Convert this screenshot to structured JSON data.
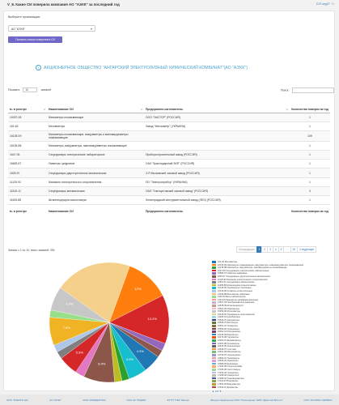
{
  "header": {
    "title": "V_8. Какие СИ поверила компания АО \"АЭХК\" за последний год",
    "user_label": "СУЗ seg07"
  },
  "filter": {
    "org_label": "Выберите организацию:",
    "org_value": "АО \"АЭХК\"",
    "show_button": "Показать список поверенных СИ"
  },
  "company_banner": "АКЦИОНЕРНОЕ ОБЩЕСТВО \"АНГАРСКИЙ ЭЛЕКТРОЛИЗНЫЙ ХИМИЧЕСКИЙ КОМБИНАТ\"(АО \"АЭХК\")",
  "table_controls": {
    "show_label": "Показать",
    "page_len": "10",
    "records_label": "записей",
    "search_label": "Поиск:"
  },
  "table": {
    "columns": [
      "№ в реестре",
      "Наименование СИ",
      "Предприятие-изготовитель",
      "Количество поверок за год"
    ],
    "rows": [
      [
        "10037-08",
        "Манометры показывающие",
        "ООО \"ЭАСТОР\" (РОССИЯ)",
        "1"
      ],
      [
        "161-62",
        "Мегомметры",
        "Завод \"Мегомметр\" (УКРАИНА)",
        "1"
      ],
      [
        "16135-09",
        "Манометры показывающие, вакуумметры и мановакуумметры показывающие",
        "",
        "109"
      ],
      [
        "16135-88",
        "Манометры, вакуумметры, мановакуумметры показывающие",
        "",
        "1"
      ],
      [
        "1647-06",
        "Секундомеры электрические лабораторные",
        "Приборостроительный завод (РОССИЯ)",
        "1"
      ],
      [
        "16683-67",
        "Омметры цифровые",
        "ОАО \"Краснодарский ЗИП\" (РОССИЯ)",
        "1"
      ],
      [
        "1825-97",
        "Секундомеры двухстрелочные механические",
        "З-Я Московский часовой завод (РОССИЯ)",
        "1"
      ],
      [
        "11125-92",
        "Магазины электрического сопротивления",
        "ПО \"Электроприбор\" (УКРАИНА)",
        "1"
      ],
      [
        "11519-11",
        "Секундомеры механические",
        "ОАО \"Златоустовский часовой завод\" (РОССИЯ)",
        "3"
      ],
      [
        "11605-88",
        "Штангенциркули-высотомеры",
        "Ленинградский инструментальный завод (ЛЕО) (РОССИЯ)",
        "1"
      ]
    ]
  },
  "table_info": "Записи с 1 по 10, всего записей: 394",
  "pagination": {
    "prev": "Предыдущая",
    "pages": [
      "1",
      "2",
      "3",
      "4",
      "5",
      "…",
      "30"
    ],
    "next": "Следующая",
    "active": "1"
  },
  "chart_data": {
    "type": "pie",
    "slices": [
      {
        "label": "12%",
        "value": 12,
        "color": "#ff7f0e"
      },
      {
        "label": "13.2%",
        "value": 13.2,
        "color": "#d62728"
      },
      {
        "label": "",
        "value": 2.0,
        "color": "#9467bd"
      },
      {
        "label": "",
        "value": 2.0,
        "color": "#8c564b"
      },
      {
        "label": "4.9%",
        "value": 4.9,
        "color": "#1f77b4"
      },
      {
        "label": "4.9%",
        "value": 4.9,
        "color": "#17becf"
      },
      {
        "label": "",
        "value": 2.0,
        "color": "#2ca02c"
      },
      {
        "label": "",
        "value": 2.0,
        "color": "#bcbd22"
      },
      {
        "label": "8.4%",
        "value": 8.4,
        "color": "#8c564b"
      },
      {
        "label": "",
        "value": 2.5,
        "color": "#e377c2"
      },
      {
        "label": "5.3%",
        "value": 5.3,
        "color": "#d62728"
      },
      {
        "label": "",
        "value": 2.0,
        "color": "#7f7f7f"
      },
      {
        "label": "",
        "value": 2.0,
        "color": "#aec7e8"
      },
      {
        "label": "7.6%",
        "value": 7.6,
        "color": "#f0b323"
      },
      {
        "label": "",
        "value": 2.0,
        "color": "#98df8a"
      },
      {
        "label": "6.4%",
        "value": 6.4,
        "color": "#c7c7c7"
      },
      {
        "label": "",
        "value": 20.8,
        "color": "#f5d08a"
      }
    ]
  },
  "legend": {
    "items": [
      {
        "label": "161-62 Мегомметры",
        "color": "#1f77b4"
      },
      {
        "label": "16135-09 Манометры показывающие, вакуумметры и мановакуумметры показывающие",
        "color": "#ff7f0e"
      },
      {
        "label": "16135-88 Манометры, вакуумметры, мановакуумметры показывающие",
        "color": "#2ca02c"
      },
      {
        "label": "1647-06 Секундомеры электрические лабораторные",
        "color": "#d62728"
      },
      {
        "label": "16683-67 Омметры цифровые",
        "color": "#9467bd"
      },
      {
        "label": "1825-97 Секундомеры двухстрелочные механические",
        "color": "#8c564b"
      },
      {
        "label": "11125-92 Магазины электрического сопротивления",
        "color": "#e377c2"
      },
      {
        "label": "11519-11 Секундомеры механические",
        "color": "#7f7f7f"
      },
      {
        "label": "11605-88 Штангенциркули-высотомеры",
        "color": "#bcbd22"
      },
      {
        "label": "16135-95 Термометры стеклянные",
        "color": "#17becf"
      },
      {
        "label": "12143-96 Аппараты испытательные",
        "color": "#aec7e8"
      },
      {
        "label": "13043-88 Вольтметры цифровые",
        "color": "#ffbb78"
      },
      {
        "label": "1344-93 Весы лабораторные",
        "color": "#98df8a"
      },
      {
        "label": "1344-05 Манометры дифференциальные",
        "color": "#ff9896"
      },
      {
        "label": "13547-94 Преобразователи давления",
        "color": "#c5b0d5"
      },
      {
        "label": "13578-99 Штангенциркули",
        "color": "#c49c94"
      },
      {
        "label": "15001-05 Микрометры",
        "color": "#f7b6d2"
      },
      {
        "label": "15250-96 Мультиметры",
        "color": "#c7c7c7"
      },
      {
        "label": "15345-92 Термометры сопротивления",
        "color": "#dbdb8d"
      },
      {
        "label": "15465-01 Калибраторы",
        "color": "#9edae5"
      },
      {
        "label": "15516-97 Амперметры",
        "color": "#393b79"
      },
      {
        "label": "15545-07 Ваттметры",
        "color": "#637939"
      },
      {
        "label": "15551-01 Тахометры",
        "color": "#8c6d31"
      },
      {
        "label": "15560-96 Уровнемеры",
        "color": "#843c39"
      },
      {
        "label": "16001-01 Расходомеры",
        "color": "#7b4173"
      },
      {
        "label": "16135-99 Барометры",
        "color": "#3182bd"
      },
      {
        "label": "16173-08 Гигрометры",
        "color": "#e6550d"
      },
      {
        "label": "16281-97 Динамометры",
        "color": "#31a354"
      },
      {
        "label": "16367-98 Хронометры",
        "color": "#756bb1"
      },
      {
        "label": "16420-05 Анализаторы",
        "color": "#636363"
      },
      {
        "label": "16518-07 Счётчики",
        "color": "#fd8d3c"
      },
      {
        "label": "16621-09 Мегаомметры",
        "color": "#74c476"
      },
      {
        "label": "16730-97 Секундомеры",
        "color": "#9e9ac8"
      },
      {
        "label": "16844-01 Термометры",
        "color": "#e7969c"
      },
      {
        "label": "16910-03 Люксметры",
        "color": "#de9ed6"
      },
      {
        "label": "16999-05 Шумомеры",
        "color": "#6baed6"
      },
      {
        "label": "17024-08 Осциллографы",
        "color": "#fdae6b"
      },
      {
        "label": "17155-99 Частотомеры",
        "color": "#a1d99b"
      },
      {
        "label": "17203-02 Генераторы",
        "color": "#bcbddc"
      },
      {
        "label": "17299-06 Измерители",
        "color": "#bdbdbd"
      },
      {
        "label": "17355-94 Трансформаторы",
        "color": "#5254a3"
      },
      {
        "label": "17411-97 Влагомеры",
        "color": "#8ca252"
      },
      {
        "label": "17500-04 Вакуумметры",
        "color": "#bd9e39"
      },
      {
        "label": "17610-10 Дозиметры",
        "color": "#ad494a"
      }
    ],
    "pager": "1/6"
  },
  "footer": {
    "links": [
      "ООО \"ОЭКОГО НЕ\"",
      "АО \"КОЭГ\"",
      "ООО СПИЕДИКТИО",
      "ОАО АК \"РОДИК\"",
      "ФГУП \"ГФЗ \"Мелен\"",
      "Фицзао Самрэнинзи ООО \"Респониене\" НРМ \"Демолой Востоп\"",
      "ООО \"ЕОЛИКА СЕРВИС\""
    ]
  }
}
